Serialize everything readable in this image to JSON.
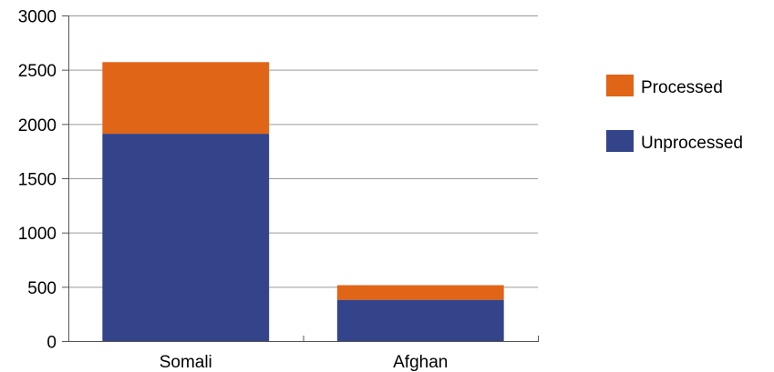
{
  "chart_data": {
    "type": "bar",
    "stacked": true,
    "categories": [
      "Somali",
      "Afghan"
    ],
    "series": [
      {
        "name": "Unprocessed",
        "values": [
          1910,
          380
        ],
        "color": "#34448A"
      },
      {
        "name": "Processed",
        "values": [
          660,
          135
        ],
        "color": "#E06516"
      }
    ],
    "title": "",
    "xlabel": "",
    "ylabel": "",
    "ylim": [
      0,
      3000
    ],
    "yticks": [
      "0",
      "500",
      "1000",
      "1500",
      "2000",
      "2500",
      "3000"
    ],
    "grid": true,
    "legend_position": "right",
    "legend_order": [
      "Processed",
      "Unprocessed"
    ]
  }
}
